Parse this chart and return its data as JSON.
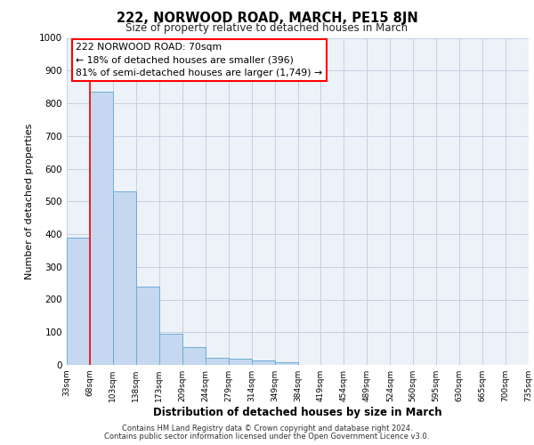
{
  "title": "222, NORWOOD ROAD, MARCH, PE15 8JN",
  "subtitle": "Size of property relative to detached houses in March",
  "xlabel": "Distribution of detached houses by size in March",
  "ylabel": "Number of detached properties",
  "bin_labels": [
    "33sqm",
    "68sqm",
    "103sqm",
    "138sqm",
    "173sqm",
    "209sqm",
    "244sqm",
    "279sqm",
    "314sqm",
    "349sqm",
    "384sqm",
    "419sqm",
    "454sqm",
    "489sqm",
    "524sqm",
    "560sqm",
    "595sqm",
    "630sqm",
    "665sqm",
    "700sqm",
    "735sqm"
  ],
  "bar_heights": [
    390,
    835,
    530,
    240,
    95,
    55,
    22,
    18,
    13,
    8,
    0,
    0,
    0,
    0,
    0,
    0,
    0,
    0,
    0,
    0
  ],
  "bar_color": "#c5d8ef",
  "bar_edge_color": "#6aaed6",
  "ylim": [
    0,
    1000
  ],
  "yticks": [
    0,
    100,
    200,
    300,
    400,
    500,
    600,
    700,
    800,
    900,
    1000
  ],
  "red_line_x": 1,
  "annotation_title": "222 NORWOOD ROAD: 70sqm",
  "annotation_line1": "← 18% of detached houses are smaller (396)",
  "annotation_line2": "81% of semi-detached houses are larger (1,749) →",
  "footer1": "Contains HM Land Registry data © Crown copyright and database right 2024.",
  "footer2": "Contains public sector information licensed under the Open Government Licence v3.0.",
  "bg_color": "#edf2f9",
  "grid_color": "#c5cfe0"
}
